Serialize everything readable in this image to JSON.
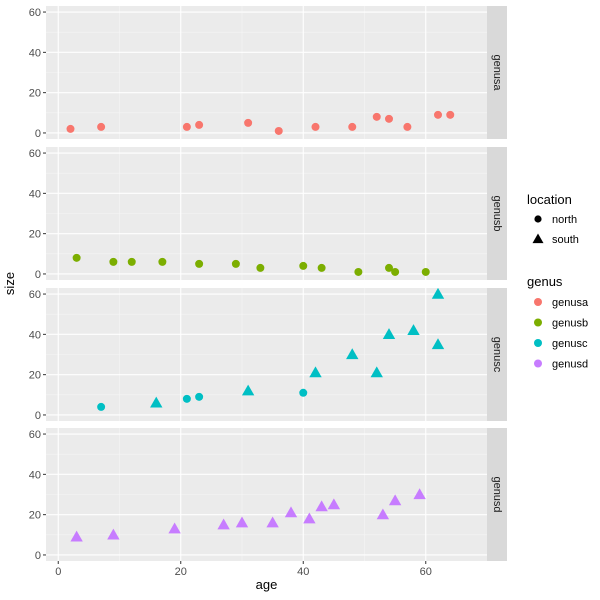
{
  "chart_data": {
    "type": "scatter",
    "xlabel": "age",
    "ylabel": "size",
    "xlim": [
      -2,
      70
    ],
    "ylim": [
      -3,
      63
    ],
    "x_ticks": [
      0,
      20,
      40,
      60
    ],
    "y_ticks": [
      0,
      20,
      40,
      60
    ],
    "grid": true,
    "facets": [
      "genusa",
      "genusb",
      "genusc",
      "genusd"
    ],
    "legend_placement": "right",
    "legend_shape": {
      "title": "location",
      "entries": [
        {
          "label": "north",
          "shape": "circle"
        },
        {
          "label": "south",
          "shape": "triangle"
        }
      ]
    },
    "legend_color": {
      "title": "genus",
      "entries": [
        {
          "label": "genusa",
          "color": "#F8766D"
        },
        {
          "label": "genusb",
          "color": "#7CAE00"
        },
        {
          "label": "genusc",
          "color": "#00BFC4"
        },
        {
          "label": "genusd",
          "color": "#C77CFF"
        }
      ]
    },
    "points": [
      {
        "genus": "genusa",
        "location": "north",
        "age": 2,
        "size": 2
      },
      {
        "genus": "genusa",
        "location": "north",
        "age": 7,
        "size": 3
      },
      {
        "genus": "genusa",
        "location": "north",
        "age": 21,
        "size": 3
      },
      {
        "genus": "genusa",
        "location": "north",
        "age": 23,
        "size": 4
      },
      {
        "genus": "genusa",
        "location": "north",
        "age": 31,
        "size": 5
      },
      {
        "genus": "genusa",
        "location": "north",
        "age": 36,
        "size": 1
      },
      {
        "genus": "genusa",
        "location": "north",
        "age": 42,
        "size": 3
      },
      {
        "genus": "genusa",
        "location": "north",
        "age": 48,
        "size": 3
      },
      {
        "genus": "genusa",
        "location": "north",
        "age": 52,
        "size": 8
      },
      {
        "genus": "genusa",
        "location": "north",
        "age": 54,
        "size": 7
      },
      {
        "genus": "genusa",
        "location": "north",
        "age": 57,
        "size": 3
      },
      {
        "genus": "genusa",
        "location": "north",
        "age": 62,
        "size": 9
      },
      {
        "genus": "genusa",
        "location": "north",
        "age": 64,
        "size": 9
      },
      {
        "genus": "genusb",
        "location": "north",
        "age": 3,
        "size": 8
      },
      {
        "genus": "genusb",
        "location": "north",
        "age": 9,
        "size": 6
      },
      {
        "genus": "genusb",
        "location": "north",
        "age": 12,
        "size": 6
      },
      {
        "genus": "genusb",
        "location": "north",
        "age": 17,
        "size": 6
      },
      {
        "genus": "genusb",
        "location": "north",
        "age": 23,
        "size": 5
      },
      {
        "genus": "genusb",
        "location": "north",
        "age": 29,
        "size": 5
      },
      {
        "genus": "genusb",
        "location": "north",
        "age": 33,
        "size": 3
      },
      {
        "genus": "genusb",
        "location": "north",
        "age": 40,
        "size": 4
      },
      {
        "genus": "genusb",
        "location": "north",
        "age": 43,
        "size": 3
      },
      {
        "genus": "genusb",
        "location": "north",
        "age": 49,
        "size": 1
      },
      {
        "genus": "genusb",
        "location": "north",
        "age": 54,
        "size": 3
      },
      {
        "genus": "genusb",
        "location": "north",
        "age": 55,
        "size": 1
      },
      {
        "genus": "genusb",
        "location": "north",
        "age": 60,
        "size": 1
      },
      {
        "genus": "genusc",
        "location": "north",
        "age": 7,
        "size": 4
      },
      {
        "genus": "genusc",
        "location": "south",
        "age": 16,
        "size": 6
      },
      {
        "genus": "genusc",
        "location": "north",
        "age": 21,
        "size": 8
      },
      {
        "genus": "genusc",
        "location": "north",
        "age": 23,
        "size": 9
      },
      {
        "genus": "genusc",
        "location": "south",
        "age": 31,
        "size": 12
      },
      {
        "genus": "genusc",
        "location": "north",
        "age": 40,
        "size": 11
      },
      {
        "genus": "genusc",
        "location": "south",
        "age": 42,
        "size": 21
      },
      {
        "genus": "genusc",
        "location": "south",
        "age": 48,
        "size": 30
      },
      {
        "genus": "genusc",
        "location": "south",
        "age": 52,
        "size": 21
      },
      {
        "genus": "genusc",
        "location": "south",
        "age": 54,
        "size": 40
      },
      {
        "genus": "genusc",
        "location": "south",
        "age": 58,
        "size": 42
      },
      {
        "genus": "genusc",
        "location": "south",
        "age": 62,
        "size": 35
      },
      {
        "genus": "genusc",
        "location": "south",
        "age": 62,
        "size": 60
      },
      {
        "genus": "genusd",
        "location": "south",
        "age": 3,
        "size": 9
      },
      {
        "genus": "genusd",
        "location": "south",
        "age": 9,
        "size": 10
      },
      {
        "genus": "genusd",
        "location": "south",
        "age": 19,
        "size": 13
      },
      {
        "genus": "genusd",
        "location": "south",
        "age": 27,
        "size": 15
      },
      {
        "genus": "genusd",
        "location": "south",
        "age": 30,
        "size": 16
      },
      {
        "genus": "genusd",
        "location": "south",
        "age": 35,
        "size": 16
      },
      {
        "genus": "genusd",
        "location": "south",
        "age": 38,
        "size": 21
      },
      {
        "genus": "genusd",
        "location": "south",
        "age": 41,
        "size": 18
      },
      {
        "genus": "genusd",
        "location": "south",
        "age": 43,
        "size": 24
      },
      {
        "genus": "genusd",
        "location": "south",
        "age": 45,
        "size": 25
      },
      {
        "genus": "genusd",
        "location": "south",
        "age": 53,
        "size": 20
      },
      {
        "genus": "genusd",
        "location": "south",
        "age": 55,
        "size": 27
      },
      {
        "genus": "genusd",
        "location": "south",
        "age": 59,
        "size": 30
      }
    ]
  }
}
